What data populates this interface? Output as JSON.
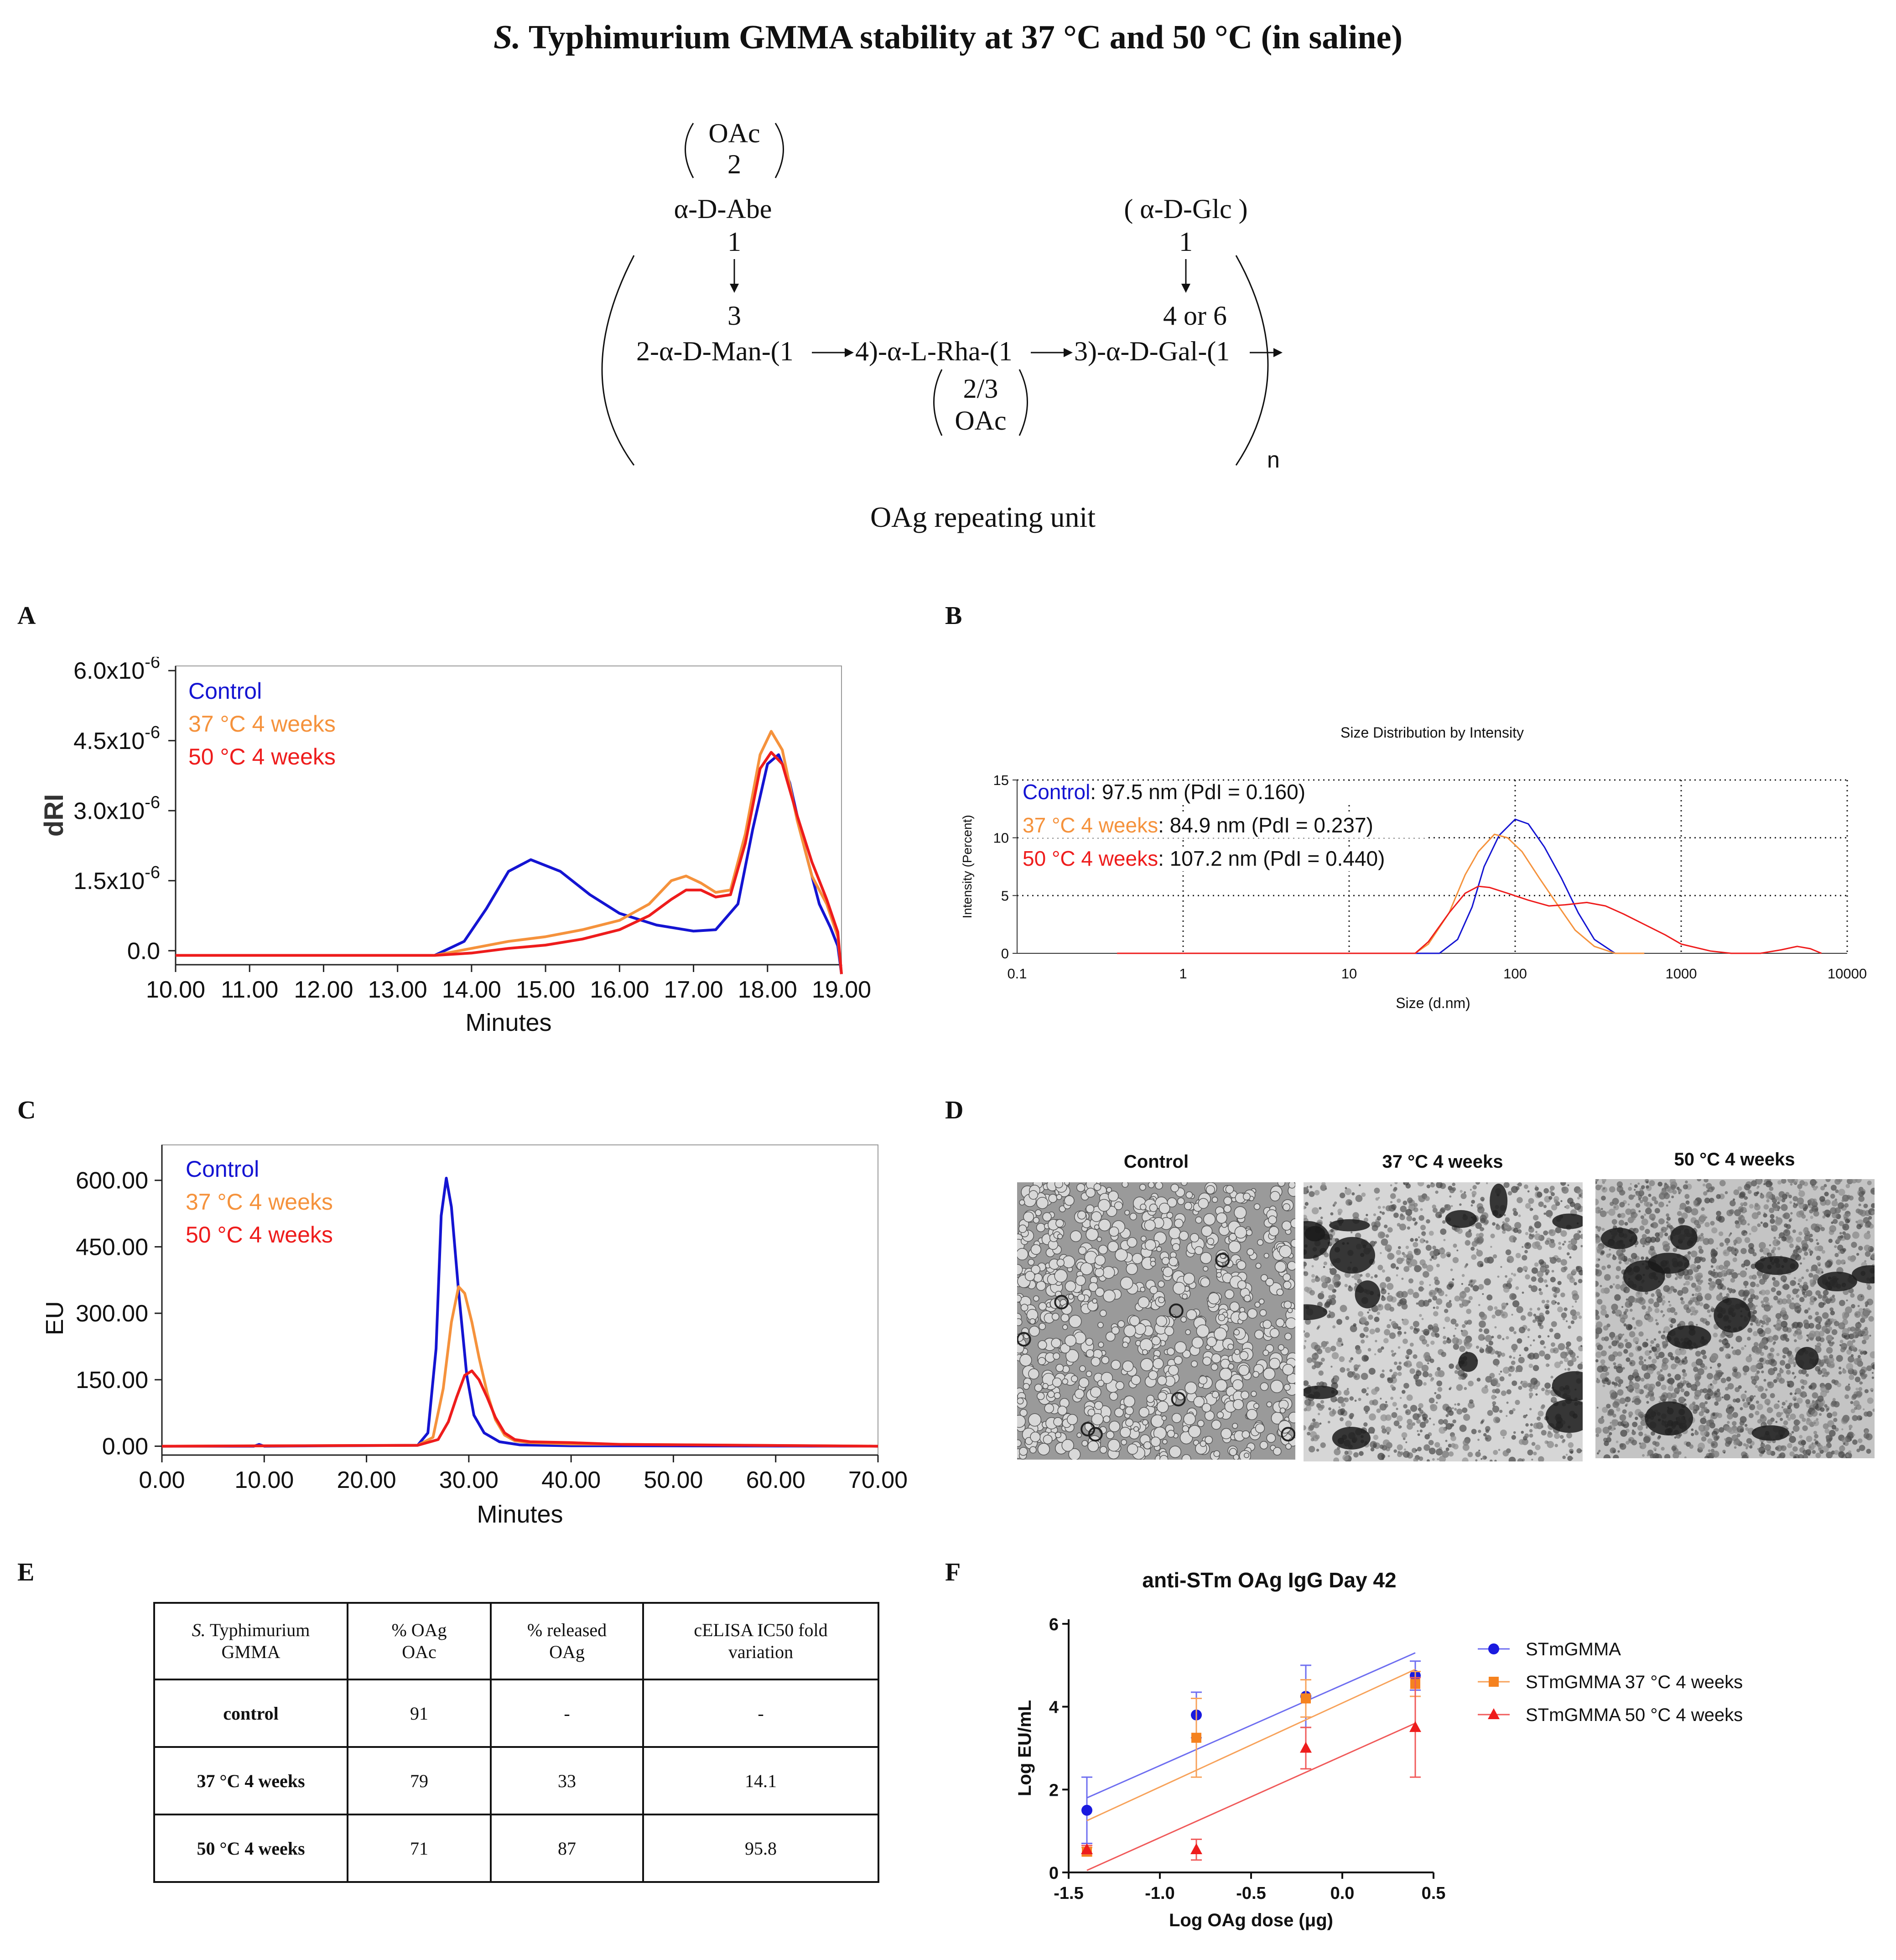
{
  "figure_title": {
    "italic": "S.",
    "rest": "Typhimurium GMMA stability at 37 °C and 50 °C (in saline)"
  },
  "structure": {
    "oac_top": "OAc",
    "oac_top_pos": "2",
    "abe": "α-D-Abe",
    "abe_pos": "1",
    "abe_link": "3",
    "glc": "( α-D-Glc )",
    "glc_pos": "1",
    "glc_link": "4 or 6",
    "chain_1": "2-α-D-Man-(1",
    "chain_2": "4)-α-L-Rha-(1",
    "chain_3": "3)-α-D-Gal-(1",
    "oac_bottom_pos": "2/3",
    "oac_bottom": "OAc",
    "repeat_n": "n",
    "caption": "OAg repeating unit"
  },
  "panel_labels": {
    "a": "A",
    "b": "B",
    "c": "C",
    "d": "D",
    "e": "E",
    "f": "F"
  },
  "colors": {
    "control": "#1414d2",
    "w37": "#f5923c",
    "w50": "#ee1c1c",
    "axis": "#222222"
  },
  "chart_data": [
    {
      "panel": "A",
      "type": "line",
      "title": "",
      "xlabel": "Minutes",
      "ylabel": "dRI",
      "xlim": [
        10,
        19
      ],
      "ylim": [
        -3e-07,
        6.1e-06
      ],
      "x_ticks": [
        "10.00",
        "11.00",
        "12.00",
        "13.00",
        "14.00",
        "15.00",
        "16.00",
        "17.00",
        "18.00",
        "19.00"
      ],
      "y_ticks": [
        {
          "base": "0.0",
          "exp": ""
        },
        {
          "base": "1.5x10",
          "exp": "-6"
        },
        {
          "base": "3.0x10",
          "exp": "-6"
        },
        {
          "base": "4.5x10",
          "exp": "-6"
        },
        {
          "base": "6.0x10",
          "exp": "-6"
        }
      ],
      "legend": [
        "Control",
        "37 °C 4 weeks",
        "50 °C 4 weeks"
      ],
      "series": [
        {
          "name": "Control",
          "x": [
            10,
            13.5,
            13.9,
            14.2,
            14.5,
            14.8,
            15.2,
            15.6,
            16,
            16.5,
            17,
            17.3,
            17.6,
            17.8,
            18.0,
            18.15,
            18.3,
            18.5,
            18.7,
            18.85,
            18.95,
            19.0
          ],
          "y": [
            -1e-07,
            -1e-07,
            2e-07,
            9e-07,
            1.7e-06,
            1.95e-06,
            1.7e-06,
            1.2e-06,
            8e-07,
            5.5e-07,
            4.2e-07,
            4.5e-07,
            1e-06,
            2.6e-06,
            4e-06,
            4.2e-06,
            3.6e-06,
            2.2e-06,
            1e-06,
            5e-07,
            1e-07,
            -5e-07
          ]
        },
        {
          "name": "37 °C 4 weeks",
          "x": [
            10,
            13.5,
            14.0,
            14.5,
            15,
            15.5,
            16,
            16.4,
            16.7,
            16.9,
            17.1,
            17.3,
            17.5,
            17.7,
            17.9,
            18.05,
            18.2,
            18.4,
            18.6,
            18.8,
            18.95,
            19.0
          ],
          "y": [
            -1e-07,
            -1e-07,
            5e-08,
            2e-07,
            3e-07,
            4.5e-07,
            6.5e-07,
            1e-06,
            1.5e-06,
            1.6e-06,
            1.45e-06,
            1.25e-06,
            1.3e-06,
            2.5e-06,
            4.2e-06,
            4.7e-06,
            4.3e-06,
            2.8e-06,
            1.6e-06,
            1e-06,
            3e-07,
            -5e-07
          ]
        },
        {
          "name": "50 °C 4 weeks",
          "x": [
            10,
            13.5,
            14.0,
            14.5,
            15,
            15.5,
            16,
            16.4,
            16.7,
            16.9,
            17.1,
            17.3,
            17.5,
            17.7,
            17.9,
            18.05,
            18.2,
            18.4,
            18.6,
            18.8,
            18.95,
            19.0
          ],
          "y": [
            -1e-07,
            -1e-07,
            -5e-08,
            5e-08,
            1.2e-07,
            2.5e-07,
            4.5e-07,
            7.5e-07,
            1.1e-06,
            1.3e-06,
            1.3e-06,
            1.15e-06,
            1.2e-06,
            2.3e-06,
            3.9e-06,
            4.25e-06,
            4e-06,
            2.9e-06,
            1.9e-06,
            1.1e-06,
            4e-07,
            -5e-07
          ]
        }
      ]
    },
    {
      "panel": "B",
      "type": "line",
      "title": "Size Distribution by Intensity",
      "xlabel": "Size (d.nm)",
      "ylabel": "Intensity (Percent)",
      "x_scale": "log",
      "xlim": [
        0.1,
        10000
      ],
      "ylim": [
        0,
        15
      ],
      "x_ticks": [
        "0.1",
        "1",
        "10",
        "100",
        "1000",
        "10000"
      ],
      "y_ticks": [
        "0",
        "5",
        "10",
        "15"
      ],
      "legend": [
        {
          "name": "Control",
          "rest": ": 97.5 nm (PdI = 0.160)"
        },
        {
          "name": "37 °C 4 weeks",
          "rest": ": 84.9 nm (PdI = 0.237)"
        },
        {
          "name": "50 °C 4 weeks",
          "rest": ": 107.2 nm (PdI = 0.440)"
        }
      ],
      "series": [
        {
          "name": "Control",
          "x": [
            0.4,
            35,
            45,
            55,
            65,
            80,
            100,
            120,
            150,
            190,
            240,
            300,
            400,
            600
          ],
          "y": [
            0,
            0,
            1.2,
            4,
            7.5,
            10.2,
            11.6,
            11.2,
            9.2,
            6.5,
            3.5,
            1.2,
            0,
            0
          ]
        },
        {
          "name": "37 °C 4 weeks",
          "x": [
            0.4,
            25,
            30,
            40,
            50,
            60,
            75,
            90,
            110,
            140,
            180,
            230,
            300,
            400,
            600
          ],
          "y": [
            0,
            0,
            0.8,
            3.5,
            6.8,
            8.8,
            10.3,
            10.0,
            8.8,
            6.5,
            4.2,
            2.0,
            0.6,
            0,
            0
          ]
        },
        {
          "name": "50 °C 4 weeks",
          "x": [
            0.4,
            25,
            30,
            40,
            50,
            60,
            70,
            90,
            120,
            160,
            200,
            270,
            350,
            450,
            600,
            800,
            1000,
            1500,
            2000,
            3000,
            4000,
            5000,
            6000,
            7000
          ],
          "y": [
            0,
            0,
            1.0,
            3.5,
            5.2,
            5.8,
            5.7,
            5.2,
            4.6,
            4.1,
            4.2,
            4.4,
            4.1,
            3.4,
            2.5,
            1.6,
            0.8,
            0.2,
            0,
            0,
            0.3,
            0.6,
            0.4,
            0
          ]
        }
      ]
    },
    {
      "panel": "C",
      "type": "line",
      "title": "",
      "xlabel": "Minutes",
      "ylabel": "EU",
      "xlim": [
        0,
        70
      ],
      "ylim": [
        -20,
        680
      ],
      "x_ticks": [
        "0.00",
        "10.00",
        "20.00",
        "30.00",
        "40.00",
        "50.00",
        "60.00",
        "70.00"
      ],
      "y_ticks": [
        "0.00",
        "150.00",
        "300.00",
        "450.00",
        "600.00"
      ],
      "legend": [
        "Control",
        "37 °C 4 weeks",
        "50 °C 4 weeks"
      ],
      "series": [
        {
          "name": "Control",
          "x": [
            0,
            9,
            9.5,
            10,
            25,
            26,
            26.8,
            27.3,
            27.8,
            28.3,
            29,
            29.8,
            30.5,
            31.5,
            33,
            35,
            40,
            70
          ],
          "y": [
            0,
            0,
            4,
            0,
            2,
            30,
            220,
            520,
            605,
            540,
            350,
            160,
            70,
            30,
            10,
            3,
            1,
            0
          ]
        },
        {
          "name": "37 °C 4 weeks",
          "x": [
            0,
            25,
            26.5,
            27.5,
            28.3,
            29,
            29.6,
            30.3,
            31,
            31.8,
            32.6,
            33.5,
            34.5,
            36,
            40,
            70
          ],
          "y": [
            0,
            2,
            20,
            130,
            280,
            360,
            345,
            280,
            200,
            120,
            60,
            25,
            12,
            8,
            5,
            0
          ]
        },
        {
          "name": "50 °C 4 weeks",
          "x": [
            0,
            25,
            27,
            28,
            28.8,
            29.6,
            30.3,
            31,
            31.8,
            32.6,
            33.5,
            34.5,
            36,
            40,
            45,
            70
          ],
          "y": [
            0,
            2,
            15,
            55,
            110,
            160,
            170,
            150,
            110,
            65,
            30,
            15,
            10,
            8,
            4,
            0
          ]
        }
      ]
    },
    {
      "panel": "F",
      "type": "scatter",
      "title": "anti-STm OAg IgG Day 42",
      "xlabel": "Log OAg dose (μg)",
      "ylabel": "Log EU/mL",
      "xlim": [
        -1.5,
        0.5
      ],
      "ylim": [
        0,
        6
      ],
      "x_ticks": [
        "-1.5",
        "-1.0",
        "-0.5",
        "0.0",
        "0.5"
      ],
      "y_ticks": [
        "0",
        "2",
        "4",
        "6"
      ],
      "legend": [
        "STmGMMA",
        "STmGMMA 37 °C 4 weeks",
        "STmGMMA 50 °C 4 weeks"
      ],
      "series": [
        {
          "name": "STmGMMA",
          "marker": "circle",
          "x": [
            -1.4,
            -0.8,
            -0.2,
            0.4
          ],
          "y": [
            1.5,
            3.8,
            4.25,
            4.75
          ],
          "err": [
            0.8,
            0.55,
            0.75,
            0.35
          ],
          "fit": [
            [
              -1.4,
              1.8
            ],
            [
              0.4,
              5.3
            ]
          ]
        },
        {
          "name": "STmGMMA 37 °C 4 weeks",
          "marker": "square",
          "x": [
            -1.4,
            -0.8,
            -0.2,
            0.4
          ],
          "y": [
            0.5,
            3.25,
            4.2,
            4.55
          ],
          "err": [
            0.1,
            0.95,
            0.45,
            0.3
          ],
          "fit": [
            [
              -1.4,
              1.25
            ],
            [
              0.4,
              4.9
            ]
          ]
        },
        {
          "name": "STmGMMA 50 °C 4 weeks",
          "marker": "triangle",
          "x": [
            -1.4,
            -0.8,
            -0.2,
            0.4
          ],
          "y": [
            0.55,
            0.55,
            3.0,
            3.5
          ],
          "err": [
            0.1,
            0.25,
            0.5,
            1.2
          ],
          "fit": [
            [
              -1.4,
              0.05
            ],
            [
              0.4,
              3.6
            ]
          ]
        }
      ]
    }
  ],
  "tem": {
    "titles": [
      "Control",
      "37 °C 4 weeks",
      "50 °C 4 weeks"
    ]
  },
  "table": {
    "headers": {
      "c1_italic": "S.",
      "c1_rest": "Typhimurium",
      "c1_line2": "GMMA",
      "c2_line1": "% OAg",
      "c2_line2": "OAc",
      "c3_line1": "% released",
      "c3_line2": "OAg",
      "c4_line1": "cELISA IC50 fold",
      "c4_line2": "variation"
    },
    "rows": [
      {
        "name": "control",
        "oac": "91",
        "released": "-",
        "fold": "-"
      },
      {
        "name": "37 °C 4 weeks",
        "oac": "79",
        "released": "33",
        "fold": "14.1"
      },
      {
        "name": "50 °C 4 weeks",
        "oac": "71",
        "released": "87",
        "fold": "95.8"
      }
    ]
  }
}
